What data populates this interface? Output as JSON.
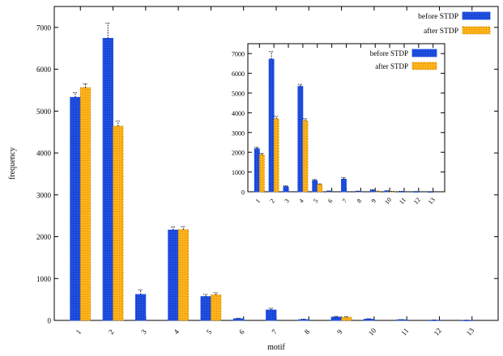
{
  "colors": {
    "before": "#1f4fe0",
    "after": "#ffb31a",
    "axis": "#000000"
  },
  "chart_data": [
    {
      "type": "bar",
      "categories": [
        "1",
        "2",
        "3",
        "4",
        "5",
        "6",
        "7",
        "8",
        "9",
        "10",
        "11",
        "12",
        "13"
      ],
      "series": [
        {
          "name": "before STDP",
          "values": [
            5330,
            6740,
            620,
            2160,
            570,
            40,
            250,
            20,
            80,
            30,
            15,
            5,
            3
          ]
        },
        {
          "name": "after STDP",
          "values": [
            5560,
            4640,
            0,
            2170,
            610,
            0,
            0,
            0,
            75,
            0,
            0,
            0,
            0
          ]
        }
      ],
      "error_high": {
        "before STDP": [
          5440,
          7100,
          730,
          2230,
          620,
          50,
          290,
          30,
          95,
          40,
          20,
          10,
          5
        ],
        "after STDP": [
          5650,
          4760,
          0,
          2240,
          660,
          0,
          0,
          0,
          90,
          0,
          0,
          0,
          0
        ]
      },
      "xlabel": "motif",
      "ylabel": "frequency",
      "ylim": [
        0,
        7500
      ],
      "yticks": [
        0,
        1000,
        2000,
        3000,
        4000,
        5000,
        6000,
        7000
      ],
      "legend": "top-right"
    },
    {
      "type": "bar",
      "categories": [
        "1",
        "2",
        "3",
        "4",
        "5",
        "6",
        "7",
        "8",
        "9",
        "10",
        "11",
        "12",
        "13"
      ],
      "series": [
        {
          "name": "before STDP",
          "values": [
            2180,
            6720,
            260,
            5340,
            570,
            30,
            640,
            20,
            80,
            40,
            10,
            5,
            2
          ]
        },
        {
          "name": "after STDP",
          "values": [
            1870,
            3700,
            0,
            3600,
            360,
            0,
            0,
            0,
            20,
            10,
            0,
            0,
            0
          ]
        }
      ],
      "error_high": {
        "before STDP": [
          2250,
          7100,
          300,
          5440,
          620,
          40,
          720,
          30,
          100,
          50,
          20,
          10,
          5
        ],
        "after STDP": [
          1940,
          3820,
          0,
          3700,
          400,
          0,
          0,
          0,
          30,
          20,
          0,
          0,
          0
        ]
      },
      "xlabel": "",
      "ylabel": "",
      "ylim": [
        0,
        7500
      ],
      "yticks": [
        0,
        1000,
        2000,
        3000,
        4000,
        5000,
        6000,
        7000
      ],
      "legend": "top-right"
    }
  ]
}
